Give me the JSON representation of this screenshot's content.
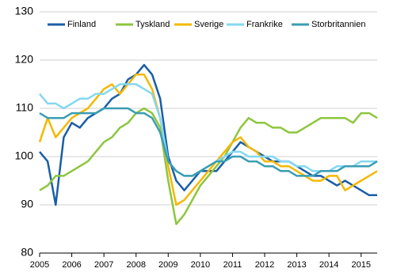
{
  "chart_data": {
    "type": "line",
    "x": [
      2005,
      2005.25,
      2005.5,
      2005.75,
      2006,
      2006.25,
      2006.5,
      2006.75,
      2007,
      2007.25,
      2007.5,
      2007.75,
      2008,
      2008.25,
      2008.5,
      2008.75,
      2009,
      2009.25,
      2009.5,
      2009.75,
      2010,
      2010.25,
      2010.5,
      2010.75,
      2011,
      2011.25,
      2011.5,
      2011.75,
      2012,
      2012.25,
      2012.5,
      2012.75,
      2013,
      2013.25,
      2013.5,
      2013.75,
      2014,
      2014.25,
      2014.5,
      2014.75,
      2015,
      2015.25,
      2015.5
    ],
    "series": [
      {
        "name": "Finland",
        "color": "#1a5ea8",
        "values": [
          101,
          99,
          90,
          104,
          107,
          106,
          108,
          109,
          110,
          112,
          113,
          116,
          117,
          119,
          117,
          112,
          100,
          95,
          93,
          95,
          97,
          97,
          97,
          99,
          101,
          103,
          102,
          101,
          100,
          99,
          99,
          99,
          98,
          97,
          96,
          96,
          95,
          94,
          95,
          94,
          93,
          92,
          92
        ]
      },
      {
        "name": "Tyskland",
        "color": "#8dc63f",
        "values": [
          93,
          94,
          96,
          96,
          97,
          98,
          99,
          101,
          103,
          104,
          106,
          107,
          109,
          110,
          109,
          106,
          95,
          86,
          88,
          91,
          94,
          96,
          98,
          100,
          103,
          106,
          108,
          107,
          107,
          106,
          106,
          105,
          105,
          106,
          107,
          108,
          108,
          108,
          108,
          107,
          109,
          109,
          108
        ]
      },
      {
        "name": "Sverige",
        "color": "#f5b800",
        "values": [
          103,
          108,
          104,
          106,
          108,
          109,
          110,
          112,
          114,
          115,
          113,
          115,
          117,
          117,
          114,
          108,
          98,
          90,
          91,
          93,
          95,
          97,
          99,
          101,
          103,
          104,
          102,
          101,
          99,
          99,
          98,
          98,
          97,
          96,
          95,
          95,
          96,
          96,
          93,
          94,
          95,
          96,
          97
        ]
      },
      {
        "name": "Frankrike",
        "color": "#84d8f2",
        "values": [
          113,
          111,
          111,
          110,
          111,
          112,
          112,
          113,
          113,
          114,
          115,
          115,
          115,
          114,
          113,
          108,
          99,
          97,
          96,
          96,
          97,
          98,
          99,
          100,
          101,
          101,
          100,
          100,
          100,
          100,
          99,
          99,
          98,
          98,
          97,
          97,
          97,
          98,
          98,
          98,
          99,
          99,
          99
        ]
      },
      {
        "name": "Storbritannien",
        "color": "#3a9db3",
        "values": [
          109,
          108,
          108,
          108,
          109,
          109,
          109,
          109,
          110,
          110,
          110,
          110,
          109,
          109,
          108,
          105,
          99,
          97,
          96,
          96,
          97,
          98,
          99,
          99,
          100,
          100,
          99,
          99,
          98,
          98,
          97,
          97,
          96,
          96,
          96,
          97,
          97,
          97,
          98,
          98,
          98,
          98,
          99
        ]
      }
    ],
    "xlim": [
      2005,
      2015.5
    ],
    "xticks": [
      2005,
      2006,
      2007,
      2008,
      2009,
      2010,
      2011,
      2012,
      2013,
      2014,
      2015
    ],
    "ylim": [
      80,
      130
    ],
    "yticks": [
      80,
      90,
      100,
      110,
      120,
      130
    ],
    "grid": true
  }
}
